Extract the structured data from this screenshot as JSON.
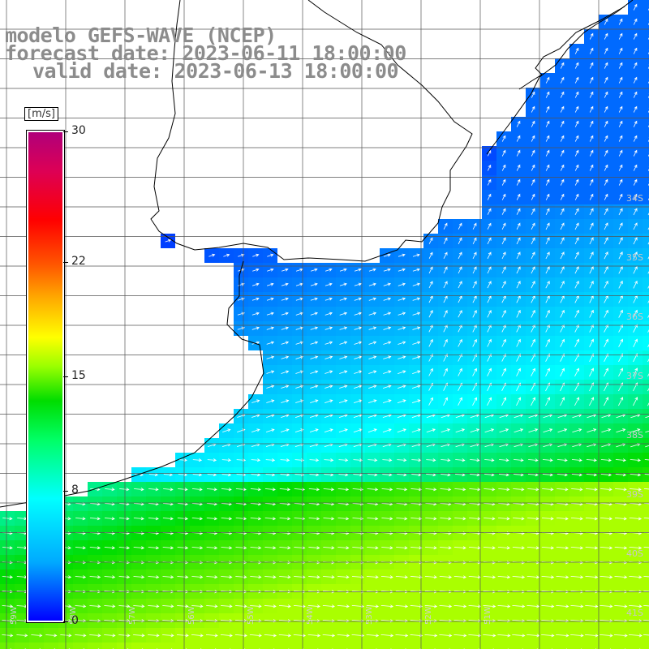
{
  "title": {
    "line1": "modelo GEFS-WAVE (NCEP)",
    "line2": "forecast date: 2023-06-11 18:00:00",
    "line3": "valid date: 2023-06-13 18:00:00"
  },
  "colorbar": {
    "unit": "[m/s]",
    "min": 0,
    "max": 30,
    "ticks": [
      "30",
      "22",
      "15",
      "8",
      "0"
    ],
    "tick_values": [
      30,
      22,
      15,
      8,
      0
    ]
  },
  "lat_labels": [
    "34S",
    "35S",
    "36S",
    "37S",
    "38S",
    "39S",
    "40S",
    "41S"
  ],
  "lon_labels": [
    "59W",
    "58W",
    "57W",
    "56W",
    "55W",
    "54W",
    "53W",
    "52W",
    "51W"
  ],
  "wind_field": {
    "variable": "wind speed",
    "unit": "m/s",
    "colors": {
      "calm": "#0000ff",
      "light": "#00aaff",
      "moderate": "#00ffff",
      "fresh": "#00dd00",
      "strong": "#aaff00",
      "land": "#ffffff",
      "coastline": "#000000",
      "grid": "#555555",
      "arrows": "#ffffff"
    }
  }
}
